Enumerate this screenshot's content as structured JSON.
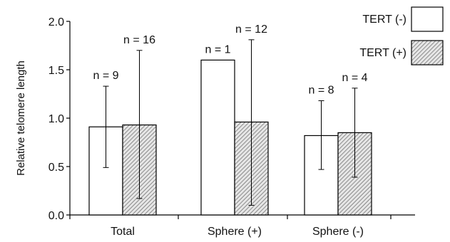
{
  "chart_data": {
    "type": "bar",
    "ylabel": "Relative telomere length",
    "ylim": [
      0,
      2.0
    ],
    "yticks": [
      "0.0",
      "0.5",
      "1.0",
      "1.5",
      "2.0"
    ],
    "categories": [
      "Total",
      "Sphere (+)",
      "Sphere (-)"
    ],
    "series": [
      {
        "name": "TERT (-)",
        "fill": "white",
        "values": [
          0.91,
          1.6,
          0.82
        ],
        "error_low": [
          0.49,
          null,
          0.47
        ],
        "error_high": [
          1.33,
          null,
          1.18
        ],
        "n_labels": [
          "n = 9",
          "n = 1",
          "n = 8"
        ]
      },
      {
        "name": "TERT (+)",
        "fill": "hatched",
        "values": [
          0.93,
          0.96,
          0.85
        ],
        "error_low": [
          0.17,
          0.1,
          0.39
        ],
        "error_high": [
          1.7,
          1.81,
          1.31
        ],
        "n_labels": [
          "n = 16",
          "n = 12",
          "n = 4"
        ]
      }
    ],
    "legend_position": "top-right",
    "grid": false
  }
}
